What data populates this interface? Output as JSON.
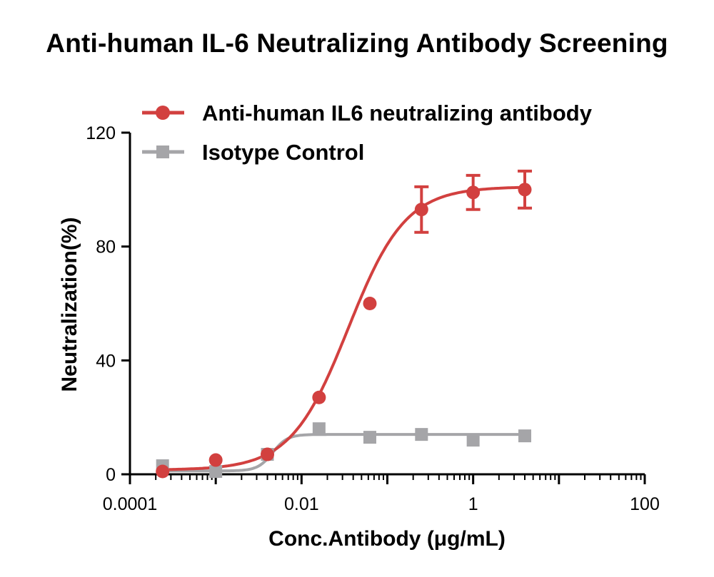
{
  "chart_data": {
    "type": "scatter",
    "title": "Anti-human IL-6 Neutralizing Antibody Screening",
    "xlabel": "Conc.Antibody (μg/mL)",
    "ylabel": "Neutralization(%)",
    "xscale": "log",
    "xlim": [
      0.0001,
      100
    ],
    "ylim": [
      0,
      120
    ],
    "x_ticks": [
      0.0001,
      0.01,
      1,
      100
    ],
    "x_tick_labels": [
      "0.0001",
      "0.01",
      "1",
      "100"
    ],
    "y_ticks": [
      0,
      40,
      80,
      120
    ],
    "y_tick_labels": [
      "0",
      "40",
      "80",
      "120"
    ],
    "grid": false,
    "legend_position": "top",
    "series": [
      {
        "name": "Anti-human IL6 neutralizing antibody",
        "color": "#d2403f",
        "marker": "circle",
        "x": [
          0.00024,
          0.001,
          0.004,
          0.016,
          0.0625,
          0.25,
          1,
          4
        ],
        "y": [
          1,
          5,
          7,
          27,
          60,
          93,
          99,
          100
        ],
        "error": [
          0,
          0,
          0,
          0,
          0,
          8,
          6,
          6.5
        ],
        "fit": "sigmoid"
      },
      {
        "name": "Isotype Control",
        "color": "#a5a5a8",
        "marker": "square",
        "x": [
          0.00024,
          0.001,
          0.004,
          0.016,
          0.0625,
          0.25,
          1,
          4
        ],
        "y": [
          3,
          1,
          7,
          16,
          13,
          14,
          12,
          13.5
        ],
        "fit": "step"
      }
    ]
  }
}
